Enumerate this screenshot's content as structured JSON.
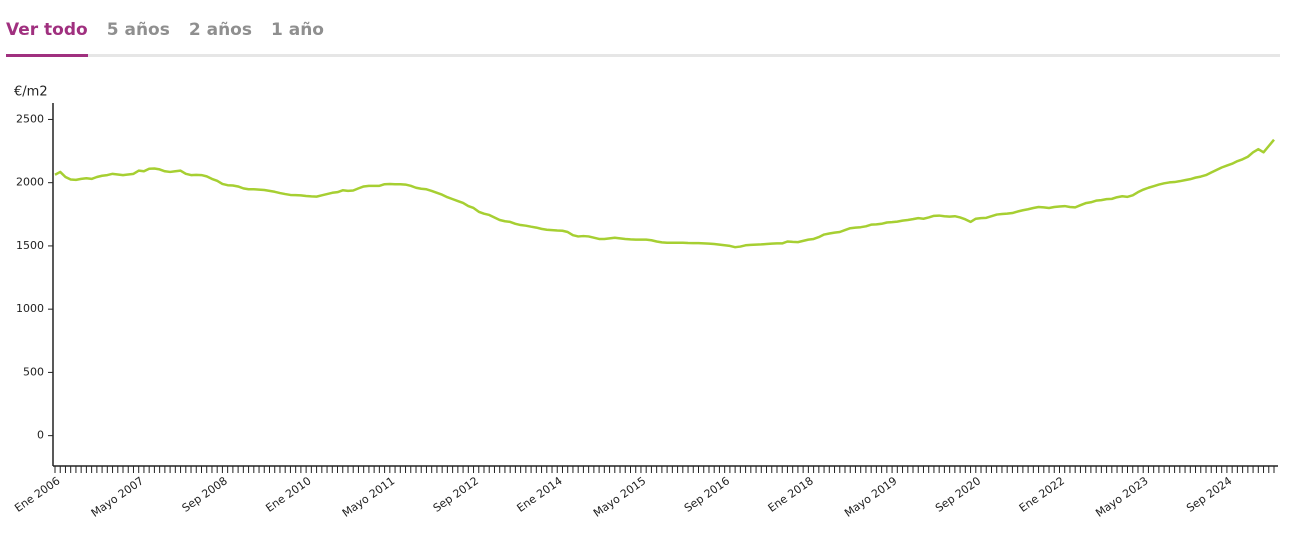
{
  "tabs": [
    "Ver todo",
    "5 años",
    "2 años",
    "1 año"
  ],
  "chart_data": {
    "type": "line",
    "y_label": "€/m2",
    "color": "#a6cf32",
    "ylim": [
      -240,
      2630
    ],
    "yticks": [
      0,
      500,
      1000,
      1500,
      2000,
      2500
    ],
    "categories": [
      "Ene 2006",
      null,
      null,
      null,
      null,
      null,
      null,
      null,
      null,
      null,
      null,
      null,
      null,
      null,
      null,
      null,
      "Mayo 2007",
      null,
      null,
      null,
      null,
      null,
      null,
      null,
      null,
      null,
      null,
      null,
      null,
      null,
      null,
      null,
      "Sep 2008",
      null,
      null,
      null,
      null,
      null,
      null,
      null,
      null,
      null,
      null,
      null,
      null,
      null,
      null,
      null,
      "Ene 2010",
      null,
      null,
      null,
      null,
      null,
      null,
      null,
      null,
      null,
      null,
      null,
      null,
      null,
      null,
      null,
      "Mayo 2011",
      null,
      null,
      null,
      null,
      null,
      null,
      null,
      null,
      null,
      null,
      null,
      null,
      null,
      null,
      null,
      "Sep 2012",
      null,
      null,
      null,
      null,
      null,
      null,
      null,
      null,
      null,
      null,
      null,
      null,
      null,
      null,
      null,
      "Ene 2014",
      null,
      null,
      null,
      null,
      null,
      null,
      null,
      null,
      null,
      null,
      null,
      null,
      null,
      null,
      null,
      "Mayo 2015",
      null,
      null,
      null,
      null,
      null,
      null,
      null,
      null,
      null,
      null,
      null,
      null,
      null,
      null,
      null,
      "Sep 2016",
      null,
      null,
      null,
      null,
      null,
      null,
      null,
      null,
      null,
      null,
      null,
      null,
      null,
      null,
      null,
      "Ene 2018",
      null,
      null,
      null,
      null,
      null,
      null,
      null,
      null,
      null,
      null,
      null,
      null,
      null,
      null,
      null,
      "Mayo 2019",
      null,
      null,
      null,
      null,
      null,
      null,
      null,
      null,
      null,
      null,
      null,
      null,
      null,
      null,
      null,
      "Sep 2020",
      null,
      null,
      null,
      null,
      null,
      null,
      null,
      null,
      null,
      null,
      null,
      null,
      null,
      null,
      null,
      "Ene 2022",
      null,
      null,
      null,
      null,
      null,
      null,
      null,
      null,
      null,
      null,
      null,
      null,
      null,
      null,
      null,
      "Mayo 2023",
      null,
      null,
      null,
      null,
      null,
      null,
      null,
      null,
      null,
      null,
      null,
      null,
      null,
      null,
      null,
      "Sep 2024",
      null,
      null,
      null,
      null,
      null,
      null,
      null,
      null,
      null
    ],
    "values": [
      2063,
      2085,
      2045,
      2025,
      2022,
      2030,
      2035,
      2030,
      2045,
      2055,
      2060,
      2070,
      2065,
      2060,
      2065,
      2070,
      2095,
      2090,
      2110,
      2112,
      2105,
      2090,
      2085,
      2090,
      2095,
      2070,
      2060,
      2062,
      2060,
      2050,
      2030,
      2015,
      1990,
      1980,
      1978,
      1970,
      1955,
      1948,
      1948,
      1945,
      1942,
      1935,
      1928,
      1918,
      1910,
      1903,
      1902,
      1900,
      1895,
      1892,
      1890,
      1900,
      1910,
      1920,
      1925,
      1940,
      1935,
      1938,
      1955,
      1970,
      1975,
      1975,
      1975,
      1988,
      1990,
      1988,
      1988,
      1985,
      1975,
      1960,
      1952,
      1948,
      1935,
      1920,
      1905,
      1885,
      1870,
      1855,
      1840,
      1815,
      1800,
      1770,
      1755,
      1745,
      1725,
      1705,
      1695,
      1690,
      1675,
      1665,
      1660,
      1652,
      1645,
      1635,
      1628,
      1625,
      1622,
      1620,
      1610,
      1585,
      1575,
      1578,
      1575,
      1565,
      1555,
      1555,
      1560,
      1565,
      1560,
      1555,
      1552,
      1550,
      1550,
      1550,
      1545,
      1535,
      1528,
      1525,
      1525,
      1525,
      1525,
      1523,
      1522,
      1522,
      1520,
      1518,
      1515,
      1510,
      1505,
      1500,
      1490,
      1495,
      1505,
      1508,
      1510,
      1512,
      1515,
      1518,
      1520,
      1520,
      1535,
      1532,
      1530,
      1540,
      1550,
      1555,
      1570,
      1590,
      1598,
      1605,
      1610,
      1625,
      1640,
      1645,
      1648,
      1655,
      1668,
      1670,
      1675,
      1685,
      1688,
      1692,
      1700,
      1705,
      1712,
      1720,
      1715,
      1725,
      1738,
      1740,
      1735,
      1732,
      1735,
      1725,
      1710,
      1690,
      1715,
      1720,
      1722,
      1735,
      1748,
      1752,
      1755,
      1760,
      1772,
      1782,
      1790,
      1800,
      1808,
      1805,
      1800,
      1808,
      1812,
      1815,
      1808,
      1805,
      1822,
      1838,
      1845,
      1858,
      1862,
      1870,
      1872,
      1885,
      1893,
      1888,
      1900,
      1925,
      1945,
      1960,
      1972,
      1985,
      1995,
      2002,
      2005,
      2012,
      2020,
      2028,
      2040,
      2048,
      2060,
      2080,
      2100,
      2120,
      2135,
      2150,
      2170,
      2185,
      2205,
      2240,
      2265,
      2240,
      2290,
      2340
    ]
  }
}
